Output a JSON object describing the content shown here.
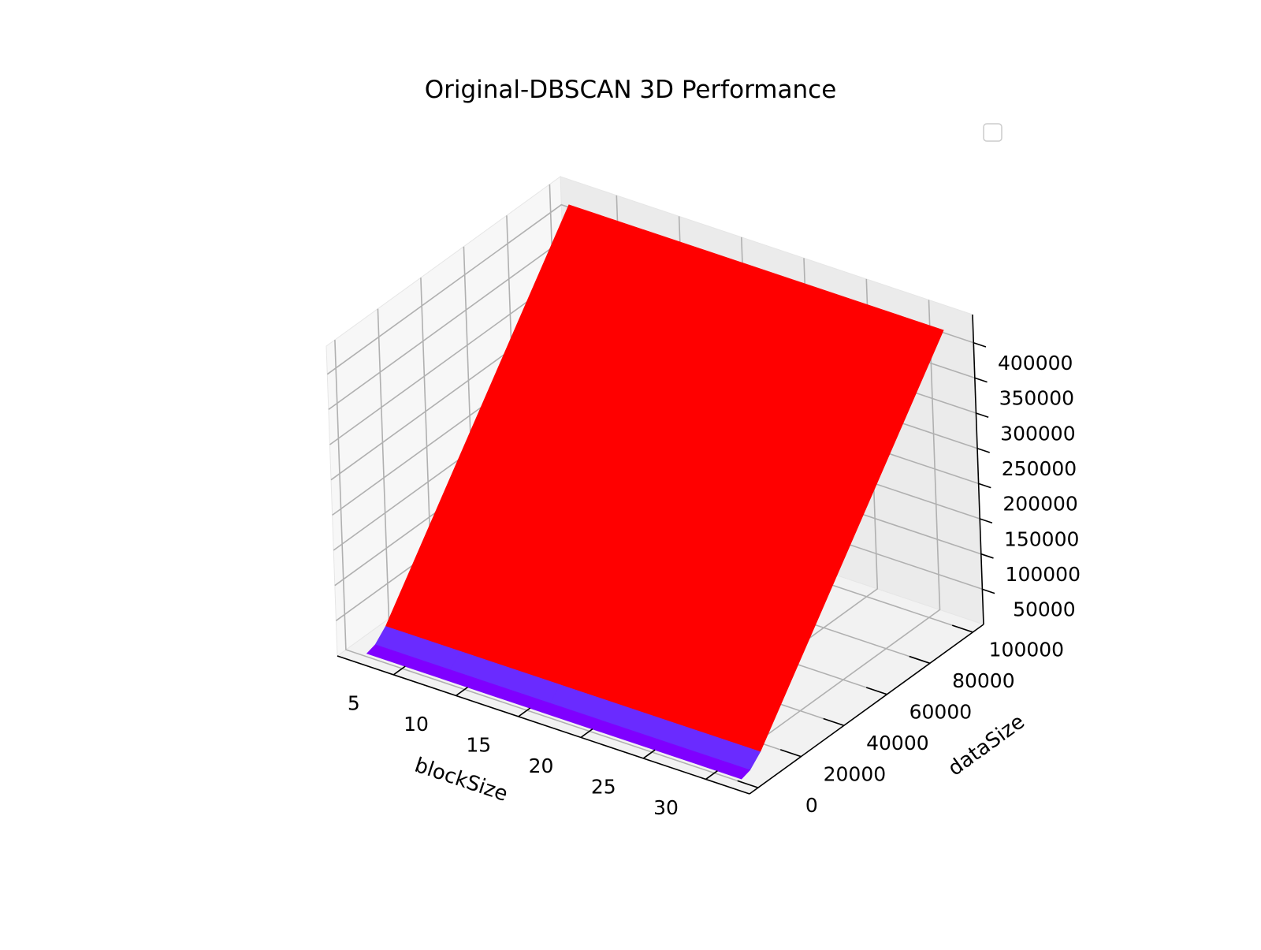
{
  "chart_data": {
    "type": "surface3d",
    "title": "Original-DBSCAN 3D Performance",
    "xlabel": "blockSize",
    "ylabel": "dataSize",
    "zlabel": "",
    "x": [
      2,
      8,
      16,
      32
    ],
    "y": [
      1000,
      5000,
      10000,
      100000
    ],
    "z": [
      [
        1200,
        1200,
        1200,
        1200
      ],
      [
        5000,
        5000,
        5000,
        5000
      ],
      [
        20000,
        20000,
        20000,
        20000
      ],
      [
        420000,
        420000,
        420000,
        420000
      ]
    ],
    "xlim": [
      0.5,
      33.5
    ],
    "ylim": [
      -4000,
      105000
    ],
    "zlim": [
      0,
      440000
    ],
    "x_ticks": [
      "5",
      "10",
      "15",
      "20",
      "25",
      "30"
    ],
    "y_ticks": [
      "0",
      "20000",
      "40000",
      "60000",
      "80000",
      "100000"
    ],
    "z_ticks": [
      "50000",
      "100000",
      "150000",
      "200000",
      "250000",
      "300000",
      "350000",
      "400000"
    ],
    "colormap": [
      "#7f00ff",
      "#6a2bff",
      "#ff0000"
    ],
    "legend": {
      "placement": "upper right",
      "entries": []
    },
    "grid": true
  }
}
